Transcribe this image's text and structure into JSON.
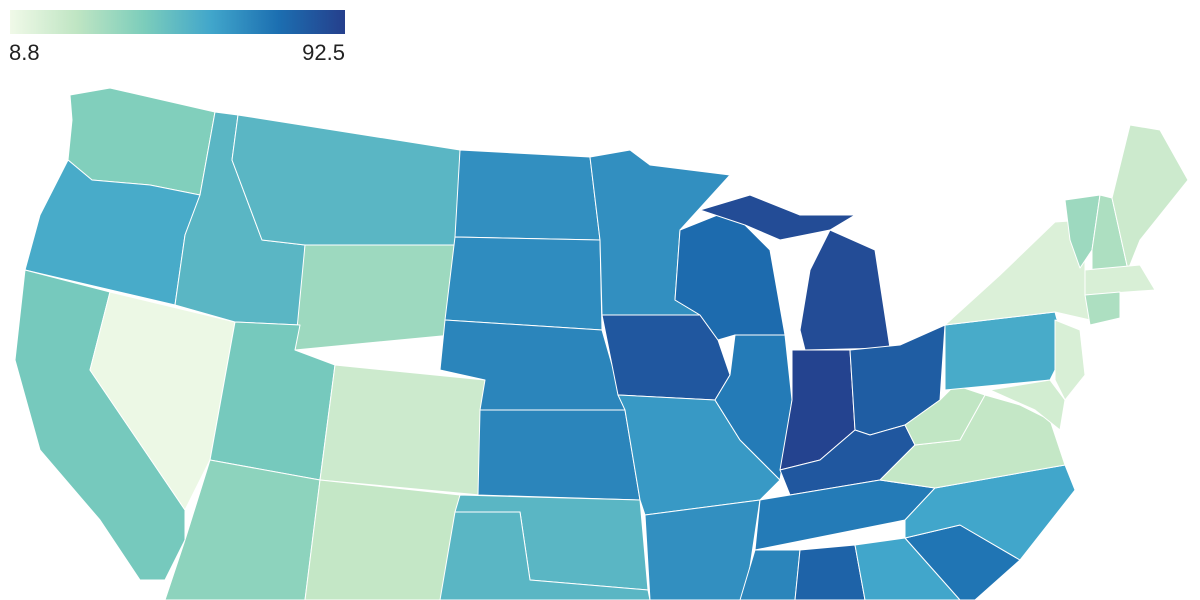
{
  "chart_data": {
    "type": "choropleth",
    "colorlim": [
      8.8,
      92.5
    ],
    "colorscale": [
      "#f0f9e8",
      "#bfe5c3",
      "#7ccdbb",
      "#41a6cb",
      "#1c6fb1",
      "#253f8c"
    ],
    "values": [
      41,
      57,
      44,
      10,
      52,
      52,
      34,
      44,
      21,
      38,
      24,
      66,
      67,
      69,
      69,
      52,
      52,
      66,
      84,
      63,
      66,
      77,
      72,
      91,
      88,
      82,
      84,
      72,
      69,
      80,
      59,
      74,
      59,
      24,
      25,
      57,
      16,
      34,
      30,
      21,
      17,
      30,
      17,
      19
    ]
  }
}
